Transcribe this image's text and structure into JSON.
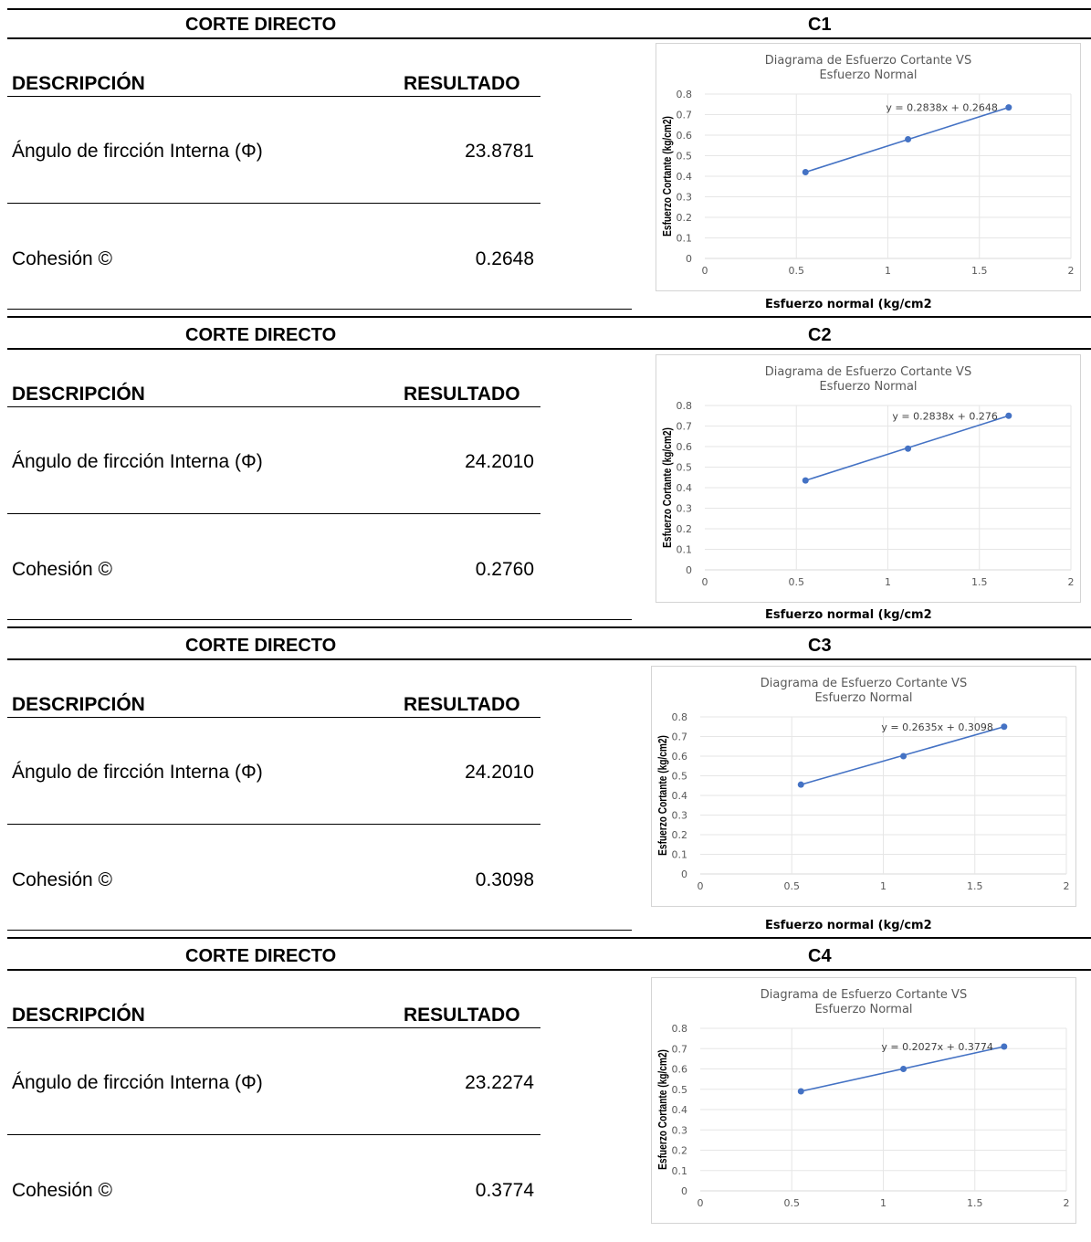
{
  "blocks": [
    {
      "header_left": "CORTE DIRECTO",
      "header_right": "C1",
      "desc_header": "DESCRIPCIÓN",
      "result_header": "RESULTADO",
      "rows": [
        {
          "label": "Ángulo de fircción Interna (Φ)",
          "value": "23.8781"
        },
        {
          "label": "Cohesión ©",
          "value": "0.2648"
        }
      ],
      "xlabel": "Esfuerzo normal (kg/cm2"
    },
    {
      "header_left": "CORTE DIRECTO",
      "header_right": "C2",
      "desc_header": "DESCRIPCIÓN",
      "result_header": "RESULTADO",
      "rows": [
        {
          "label": "Ángulo de fircción Interna (Φ)",
          "value": "24.2010"
        },
        {
          "label": "Cohesión ©",
          "value": "0.2760"
        }
      ],
      "xlabel": "Esfuerzo normal (kg/cm2"
    },
    {
      "header_left": "CORTE DIRECTO",
      "header_right": "C3",
      "desc_header": "DESCRIPCIÓN",
      "result_header": "RESULTADO",
      "rows": [
        {
          "label": "Ángulo de fircción Interna (Φ)",
          "value": "24.2010"
        },
        {
          "label": "Cohesión ©",
          "value": "0.3098"
        }
      ],
      "xlabel": "Esfuerzo normal (kg/cm2"
    },
    {
      "header_left": "CORTE DIRECTO",
      "header_right": "C4",
      "desc_header": "DESCRIPCIÓN",
      "result_header": "RESULTADO",
      "rows": [
        {
          "label": "Ángulo de fircción Interna (Φ)",
          "value": "23.2274"
        },
        {
          "label": "Cohesión ©",
          "value": "0.3774"
        }
      ],
      "xlabel": ""
    }
  ],
  "chart_data": [
    {
      "type": "scatter",
      "title": "Diagrama de Esfuerzo Cortante VS Esfuerzo Normal",
      "xlabel": "Esfuerzo normal (kg/cm2",
      "ylabel": "Esfuerzo Cortante (kg/cm2)",
      "xlim": [
        0,
        2
      ],
      "ylim": [
        0,
        0.8
      ],
      "xticks": [
        "0",
        "0.5",
        "1",
        "1.5",
        "2"
      ],
      "yticks": [
        "0",
        "0.1",
        "0.2",
        "0.3",
        "0.4",
        "0.5",
        "0.6",
        "0.7",
        "0.8"
      ],
      "x": [
        0.55,
        1.11,
        1.66
      ],
      "y": [
        0.42,
        0.58,
        0.735
      ],
      "trendline": {
        "slope": 0.2838,
        "intercept": 0.2648,
        "label": "y = 0.2838x + 0.2648"
      },
      "color": "#4472c4",
      "grid": true
    },
    {
      "type": "scatter",
      "title": "Diagrama de Esfuerzo Cortante VS Esfuerzo Normal",
      "xlabel": "Esfuerzo normal (kg/cm2",
      "ylabel": "Esfuerzo Cortante (kg/cm2)",
      "xlim": [
        0,
        2
      ],
      "ylim": [
        0,
        0.8
      ],
      "xticks": [
        "0",
        "0.5",
        "1",
        "1.5",
        "2"
      ],
      "yticks": [
        "0",
        "0.1",
        "0.2",
        "0.3",
        "0.4",
        "0.5",
        "0.6",
        "0.7",
        "0.8"
      ],
      "x": [
        0.55,
        1.11,
        1.66
      ],
      "y": [
        0.435,
        0.59,
        0.75
      ],
      "trendline": {
        "slope": 0.2838,
        "intercept": 0.276,
        "label": "y = 0.2838x + 0.276"
      },
      "color": "#4472c4",
      "grid": true
    },
    {
      "type": "scatter",
      "title": "Diagrama de Esfuerzo Cortante VS Esfuerzo Normal",
      "xlabel": "Esfuerzo normal (kg/cm2",
      "ylabel": "Esfuerzo Cortante (kg/cm2)",
      "xlim": [
        0,
        2
      ],
      "ylim": [
        0,
        0.8
      ],
      "xticks": [
        "0",
        "0.5",
        "1",
        "1.5",
        "2"
      ],
      "yticks": [
        "0",
        "0.1",
        "0.2",
        "0.3",
        "0.4",
        "0.5",
        "0.6",
        "0.7",
        "0.8"
      ],
      "x": [
        0.55,
        1.11,
        1.66
      ],
      "y": [
        0.455,
        0.6,
        0.75
      ],
      "trendline": {
        "slope": 0.2635,
        "intercept": 0.3098,
        "label": "y = 0.2635x + 0.3098"
      },
      "color": "#4472c4",
      "grid": true
    },
    {
      "type": "scatter",
      "title": "Diagrama de Esfuerzo Cortante VS Esfuerzo Normal",
      "xlabel": "",
      "ylabel": "Esfuerzo Cortante (kg/cm2)",
      "xlim": [
        0,
        2
      ],
      "ylim": [
        0,
        0.8
      ],
      "xticks": [
        "0",
        "0.5",
        "1",
        "1.5",
        "2"
      ],
      "yticks": [
        "0",
        "0.1",
        "0.2",
        "0.3",
        "0.4",
        "0.5",
        "0.6",
        "0.7",
        "0.8"
      ],
      "x": [
        0.55,
        1.11,
        1.66
      ],
      "y": [
        0.49,
        0.6,
        0.71
      ],
      "trendline": {
        "slope": 0.2027,
        "intercept": 0.3774,
        "label": "y = 0.2027x + 0.3774"
      },
      "color": "#4472c4",
      "grid": true
    }
  ]
}
